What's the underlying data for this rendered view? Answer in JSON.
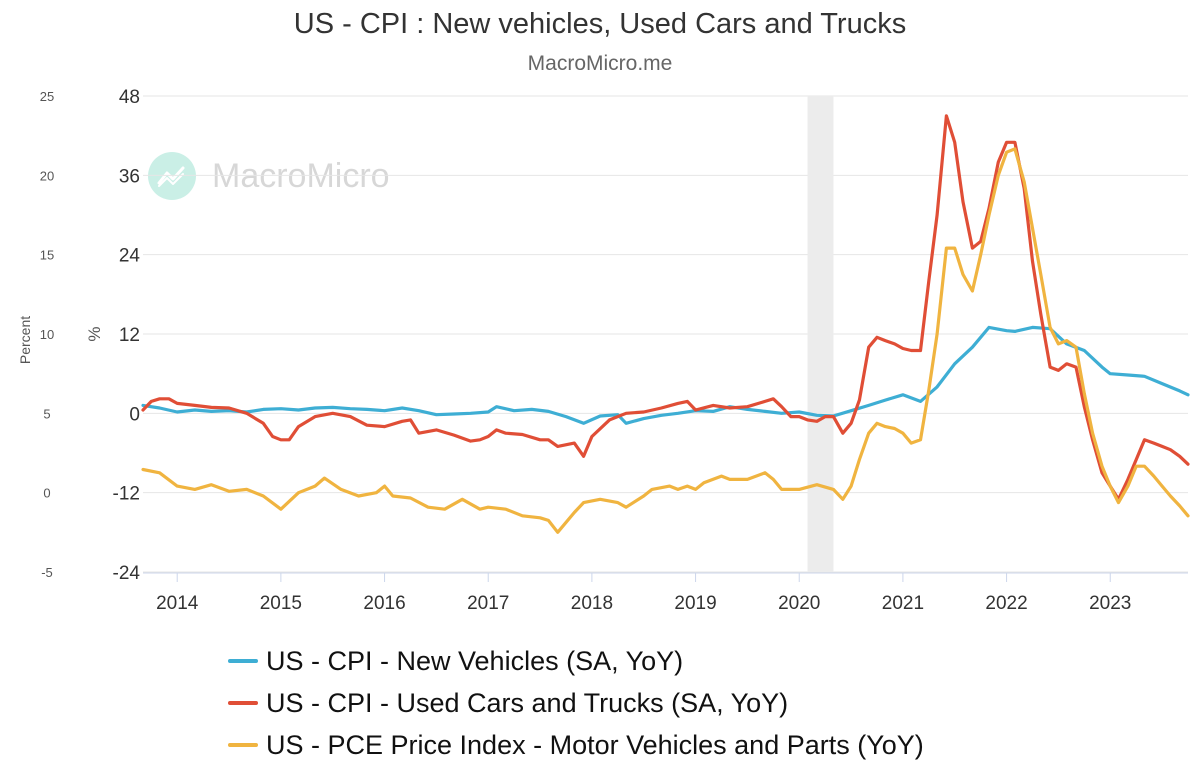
{
  "chart_data": {
    "type": "line",
    "title": "US - CPI : New vehicles, Used Cars and Trucks",
    "subtitle": "MacroMicro.me",
    "watermark": "MacroMicro",
    "left_axis": {
      "label": "Percent",
      "ticks": [
        25,
        20,
        15,
        10,
        5,
        0,
        -5
      ]
    },
    "right_axis": {
      "label": "%",
      "ticks": [
        48,
        36,
        24,
        12,
        0,
        -12,
        -24
      ],
      "ylim": [
        -24,
        48
      ]
    },
    "x_ticks": [
      "2014",
      "2015",
      "2016",
      "2017",
      "2018",
      "2019",
      "2020",
      "2021",
      "2022",
      "2023"
    ],
    "x_range": [
      2013.67,
      2023.75
    ],
    "recession_band": [
      2020.08,
      2020.33
    ],
    "grid": true,
    "legend_position": "bottom",
    "series": [
      {
        "name": "US - CPI - New Vehicles (SA, YoY)",
        "color": "#3eaed4",
        "points": [
          [
            2013.67,
            1.2
          ],
          [
            2013.83,
            0.8
          ],
          [
            2014.0,
            0.2
          ],
          [
            2014.17,
            0.5
          ],
          [
            2014.33,
            0.3
          ],
          [
            2014.5,
            0.4
          ],
          [
            2014.67,
            0.2
          ],
          [
            2014.83,
            0.6
          ],
          [
            2015.0,
            0.7
          ],
          [
            2015.17,
            0.5
          ],
          [
            2015.33,
            0.8
          ],
          [
            2015.5,
            0.9
          ],
          [
            2015.67,
            0.7
          ],
          [
            2015.83,
            0.6
          ],
          [
            2016.0,
            0.4
          ],
          [
            2016.17,
            0.8
          ],
          [
            2016.33,
            0.4
          ],
          [
            2016.5,
            -0.2
          ],
          [
            2016.67,
            -0.1
          ],
          [
            2016.83,
            0.0
          ],
          [
            2017.0,
            0.2
          ],
          [
            2017.08,
            1.0
          ],
          [
            2017.25,
            0.4
          ],
          [
            2017.42,
            0.6
          ],
          [
            2017.58,
            0.3
          ],
          [
            2017.75,
            -0.5
          ],
          [
            2017.92,
            -1.5
          ],
          [
            2018.08,
            -0.4
          ],
          [
            2018.25,
            -0.2
          ],
          [
            2018.33,
            -1.5
          ],
          [
            2018.5,
            -0.8
          ],
          [
            2018.67,
            -0.3
          ],
          [
            2018.83,
            0.0
          ],
          [
            2019.0,
            0.4
          ],
          [
            2019.17,
            0.3
          ],
          [
            2019.33,
            1.0
          ],
          [
            2019.5,
            0.6
          ],
          [
            2019.67,
            0.3
          ],
          [
            2019.83,
            0.0
          ],
          [
            2020.0,
            0.2
          ],
          [
            2020.17,
            -0.3
          ],
          [
            2020.33,
            -0.4
          ],
          [
            2020.5,
            0.4
          ],
          [
            2020.67,
            1.2
          ],
          [
            2020.83,
            2.0
          ],
          [
            2021.0,
            2.8
          ],
          [
            2021.17,
            1.8
          ],
          [
            2021.33,
            4.0
          ],
          [
            2021.5,
            7.5
          ],
          [
            2021.67,
            10.0
          ],
          [
            2021.83,
            13.0
          ],
          [
            2022.0,
            12.5
          ],
          [
            2022.08,
            12.4
          ],
          [
            2022.25,
            13.0
          ],
          [
            2022.42,
            12.8
          ],
          [
            2022.58,
            10.5
          ],
          [
            2022.75,
            9.5
          ],
          [
            2022.92,
            7.0
          ],
          [
            2023.0,
            6.0
          ],
          [
            2023.17,
            5.8
          ],
          [
            2023.33,
            5.6
          ],
          [
            2023.5,
            4.5
          ],
          [
            2023.67,
            3.4
          ],
          [
            2023.75,
            2.8
          ]
        ]
      },
      {
        "name": "US - CPI - Used Cars and Trucks (SA, YoY)",
        "color": "#e04e36",
        "points": [
          [
            2013.67,
            0.5
          ],
          [
            2013.75,
            1.8
          ],
          [
            2013.83,
            2.2
          ],
          [
            2013.92,
            2.2
          ],
          [
            2014.0,
            1.5
          ],
          [
            2014.17,
            1.2
          ],
          [
            2014.33,
            0.9
          ],
          [
            2014.5,
            0.8
          ],
          [
            2014.67,
            0.0
          ],
          [
            2014.83,
            -1.5
          ],
          [
            2014.92,
            -3.5
          ],
          [
            2015.0,
            -4.0
          ],
          [
            2015.08,
            -4.0
          ],
          [
            2015.17,
            -2.0
          ],
          [
            2015.33,
            -0.5
          ],
          [
            2015.5,
            0.0
          ],
          [
            2015.67,
            -0.5
          ],
          [
            2015.83,
            -1.8
          ],
          [
            2016.0,
            -2.0
          ],
          [
            2016.17,
            -1.2
          ],
          [
            2016.25,
            -1.0
          ],
          [
            2016.33,
            -3.0
          ],
          [
            2016.5,
            -2.5
          ],
          [
            2016.67,
            -3.3
          ],
          [
            2016.83,
            -4.2
          ],
          [
            2016.92,
            -4.0
          ],
          [
            2017.0,
            -3.5
          ],
          [
            2017.08,
            -2.5
          ],
          [
            2017.17,
            -3.0
          ],
          [
            2017.33,
            -3.2
          ],
          [
            2017.5,
            -4.0
          ],
          [
            2017.58,
            -4.0
          ],
          [
            2017.67,
            -5.0
          ],
          [
            2017.83,
            -4.5
          ],
          [
            2017.92,
            -6.5
          ],
          [
            2018.0,
            -3.5
          ],
          [
            2018.17,
            -1.0
          ],
          [
            2018.33,
            0.0
          ],
          [
            2018.5,
            0.2
          ],
          [
            2018.67,
            0.8
          ],
          [
            2018.83,
            1.5
          ],
          [
            2018.92,
            1.8
          ],
          [
            2019.0,
            0.5
          ],
          [
            2019.17,
            1.2
          ],
          [
            2019.33,
            0.8
          ],
          [
            2019.5,
            1.0
          ],
          [
            2019.67,
            1.8
          ],
          [
            2019.75,
            2.2
          ],
          [
            2019.83,
            1.0
          ],
          [
            2019.92,
            -0.5
          ],
          [
            2020.0,
            -0.5
          ],
          [
            2020.08,
            -1.0
          ],
          [
            2020.17,
            -1.2
          ],
          [
            2020.25,
            -0.5
          ],
          [
            2020.33,
            -0.5
          ],
          [
            2020.42,
            -3.0
          ],
          [
            2020.5,
            -1.5
          ],
          [
            2020.58,
            2.0
          ],
          [
            2020.67,
            10.0
          ],
          [
            2020.75,
            11.5
          ],
          [
            2020.83,
            11.0
          ],
          [
            2020.92,
            10.5
          ],
          [
            2021.0,
            9.8
          ],
          [
            2021.08,
            9.5
          ],
          [
            2021.17,
            9.5
          ],
          [
            2021.25,
            20.0
          ],
          [
            2021.33,
            30.0
          ],
          [
            2021.42,
            45.0
          ],
          [
            2021.5,
            41.0
          ],
          [
            2021.58,
            32.0
          ],
          [
            2021.67,
            25.0
          ],
          [
            2021.75,
            26.0
          ],
          [
            2021.83,
            31.0
          ],
          [
            2021.92,
            38.0
          ],
          [
            2022.0,
            41.0
          ],
          [
            2022.08,
            41.0
          ],
          [
            2022.17,
            34.0
          ],
          [
            2022.25,
            23.0
          ],
          [
            2022.33,
            15.0
          ],
          [
            2022.42,
            7.0
          ],
          [
            2022.5,
            6.5
          ],
          [
            2022.58,
            7.5
          ],
          [
            2022.67,
            7.0
          ],
          [
            2022.75,
            1.0
          ],
          [
            2022.83,
            -4.0
          ],
          [
            2022.92,
            -9.0
          ],
          [
            2023.0,
            -11.0
          ],
          [
            2023.08,
            -13.0
          ],
          [
            2023.17,
            -10.0
          ],
          [
            2023.25,
            -7.0
          ],
          [
            2023.33,
            -4.0
          ],
          [
            2023.42,
            -4.5
          ],
          [
            2023.5,
            -5.0
          ],
          [
            2023.58,
            -5.5
          ],
          [
            2023.67,
            -6.5
          ],
          [
            2023.75,
            -7.7
          ]
        ]
      },
      {
        "name": "US - PCE Price Index - Motor Vehicles and Parts (YoY)",
        "color": "#f0b440",
        "points": [
          [
            2013.67,
            -8.5
          ],
          [
            2013.83,
            -9.0
          ],
          [
            2014.0,
            -11.0
          ],
          [
            2014.17,
            -11.5
          ],
          [
            2014.33,
            -10.8
          ],
          [
            2014.5,
            -11.8
          ],
          [
            2014.67,
            -11.5
          ],
          [
            2014.83,
            -12.5
          ],
          [
            2015.0,
            -14.5
          ],
          [
            2015.17,
            -12.0
          ],
          [
            2015.33,
            -11.0
          ],
          [
            2015.42,
            -9.8
          ],
          [
            2015.58,
            -11.5
          ],
          [
            2015.75,
            -12.5
          ],
          [
            2015.92,
            -12.0
          ],
          [
            2016.0,
            -11.0
          ],
          [
            2016.08,
            -12.5
          ],
          [
            2016.25,
            -12.8
          ],
          [
            2016.42,
            -14.2
          ],
          [
            2016.58,
            -14.5
          ],
          [
            2016.75,
            -13.0
          ],
          [
            2016.92,
            -14.5
          ],
          [
            2017.0,
            -14.2
          ],
          [
            2017.17,
            -14.5
          ],
          [
            2017.33,
            -15.5
          ],
          [
            2017.5,
            -15.8
          ],
          [
            2017.58,
            -16.2
          ],
          [
            2017.67,
            -18.0
          ],
          [
            2017.83,
            -15.0
          ],
          [
            2017.92,
            -13.5
          ],
          [
            2018.08,
            -13.0
          ],
          [
            2018.25,
            -13.5
          ],
          [
            2018.33,
            -14.2
          ],
          [
            2018.5,
            -12.5
          ],
          [
            2018.58,
            -11.5
          ],
          [
            2018.75,
            -11.0
          ],
          [
            2018.83,
            -11.5
          ],
          [
            2018.92,
            -11.0
          ],
          [
            2019.0,
            -11.5
          ],
          [
            2019.08,
            -10.5
          ],
          [
            2019.25,
            -9.5
          ],
          [
            2019.33,
            -10.0
          ],
          [
            2019.5,
            -10.0
          ],
          [
            2019.67,
            -9.0
          ],
          [
            2019.75,
            -10.0
          ],
          [
            2019.83,
            -11.5
          ],
          [
            2020.0,
            -11.5
          ],
          [
            2020.17,
            -10.8
          ],
          [
            2020.33,
            -11.5
          ],
          [
            2020.42,
            -13.0
          ],
          [
            2020.5,
            -11.0
          ],
          [
            2020.58,
            -7.0
          ],
          [
            2020.67,
            -3.0
          ],
          [
            2020.75,
            -1.5
          ],
          [
            2020.83,
            -2.0
          ],
          [
            2020.92,
            -2.3
          ],
          [
            2021.0,
            -3.0
          ],
          [
            2021.08,
            -4.5
          ],
          [
            2021.17,
            -4.0
          ],
          [
            2021.25,
            3.5
          ],
          [
            2021.33,
            12.0
          ],
          [
            2021.42,
            25.0
          ],
          [
            2021.5,
            25.0
          ],
          [
            2021.58,
            21.0
          ],
          [
            2021.67,
            18.5
          ],
          [
            2021.75,
            24.0
          ],
          [
            2021.83,
            30.0
          ],
          [
            2021.92,
            36.0
          ],
          [
            2022.0,
            39.5
          ],
          [
            2022.08,
            40.0
          ],
          [
            2022.17,
            35.0
          ],
          [
            2022.25,
            28.0
          ],
          [
            2022.33,
            21.0
          ],
          [
            2022.42,
            13.0
          ],
          [
            2022.5,
            10.5
          ],
          [
            2022.58,
            11.0
          ],
          [
            2022.67,
            10.0
          ],
          [
            2022.75,
            3.0
          ],
          [
            2022.83,
            -3.0
          ],
          [
            2022.92,
            -8.0
          ],
          [
            2023.0,
            -11.0
          ],
          [
            2023.08,
            -13.5
          ],
          [
            2023.17,
            -11.0
          ],
          [
            2023.25,
            -8.0
          ],
          [
            2023.33,
            -8.0
          ],
          [
            2023.42,
            -9.5
          ],
          [
            2023.5,
            -11.0
          ],
          [
            2023.58,
            -12.5
          ],
          [
            2023.67,
            -14.0
          ],
          [
            2023.75,
            -15.5
          ]
        ]
      }
    ]
  }
}
